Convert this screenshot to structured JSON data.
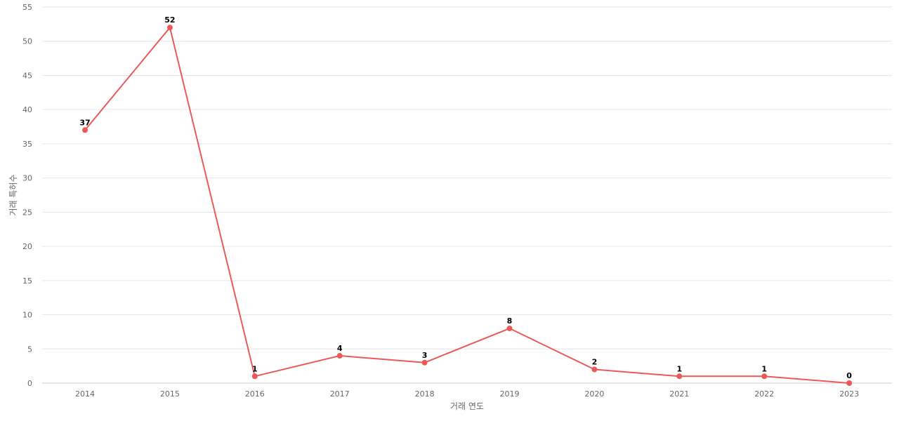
{
  "chart_data": {
    "type": "line",
    "x": [
      "2014",
      "2015",
      "2016",
      "2017",
      "2018",
      "2019",
      "2020",
      "2021",
      "2022",
      "2023"
    ],
    "series": [
      {
        "values": [
          37,
          52,
          1,
          4,
          3,
          8,
          2,
          1,
          1,
          0
        ]
      }
    ],
    "xlabel": "거래 연도",
    "ylabel": "거래 특허수",
    "ylim": [
      0,
      55
    ],
    "yticks": [
      0,
      5,
      10,
      15,
      20,
      25,
      30,
      35,
      40,
      45,
      50,
      55
    ],
    "grid": true,
    "data_labels": true,
    "colors": {
      "series": "#eb5a5a",
      "grid": "#e6e6e6"
    }
  }
}
